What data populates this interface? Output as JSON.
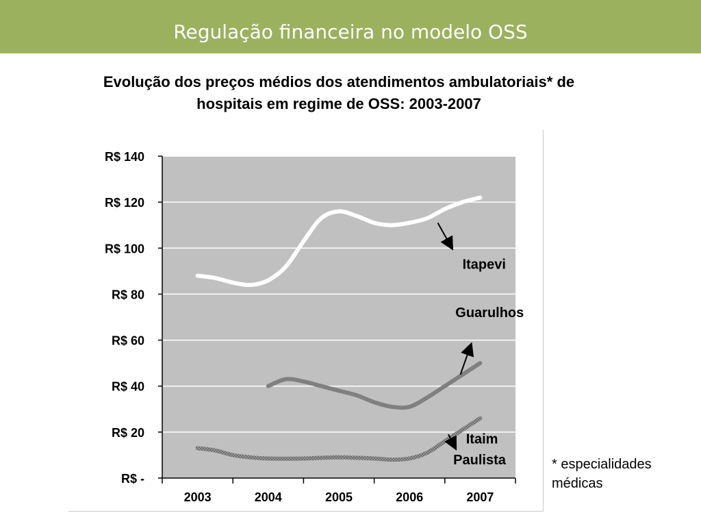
{
  "header": {
    "title": "Regulação financeira no modelo OSS",
    "bar_color": "#9bb15e"
  },
  "subtitle": {
    "line1": "Evolução dos preços médios dos atendimentos ambulatoriais* de",
    "line2": "hospitais em regime de OSS: 2003-2007"
  },
  "footnote": {
    "line1": "* especialidades",
    "line2": "médicas"
  },
  "chart_data": {
    "type": "line",
    "x_categories": [
      "2003",
      "2004",
      "2005",
      "2006",
      "2007"
    ],
    "y_ticks": [
      {
        "value": 0,
        "label": "R$ -"
      },
      {
        "value": 20,
        "label": "R$ 20"
      },
      {
        "value": 40,
        "label": "R$ 40"
      },
      {
        "value": 60,
        "label": "R$ 60"
      },
      {
        "value": 80,
        "label": "R$ 80"
      },
      {
        "value": 100,
        "label": "R$ 100"
      },
      {
        "value": 120,
        "label": "R$ 120"
      },
      {
        "value": 140,
        "label": "R$ 140"
      }
    ],
    "ylim": [
      0,
      140
    ],
    "grid": true,
    "plot_background": "#c0c0c0",
    "series": [
      {
        "name": "Itapevi",
        "color": "#ffffff",
        "style": "solid",
        "points": [
          {
            "x": 2003,
            "y": 88
          },
          {
            "x": 2003.25,
            "y": 87
          },
          {
            "x": 2003.5,
            "y": 85
          },
          {
            "x": 2003.75,
            "y": 84
          },
          {
            "x": 2004,
            "y": 86
          },
          {
            "x": 2004.25,
            "y": 92
          },
          {
            "x": 2004.5,
            "y": 103
          },
          {
            "x": 2004.75,
            "y": 113
          },
          {
            "x": 2005,
            "y": 116
          },
          {
            "x": 2005.25,
            "y": 114
          },
          {
            "x": 2005.5,
            "y": 111
          },
          {
            "x": 2005.75,
            "y": 110
          },
          {
            "x": 2006,
            "y": 111
          },
          {
            "x": 2006.25,
            "y": 113
          },
          {
            "x": 2006.5,
            "y": 117
          },
          {
            "x": 2006.75,
            "y": 120
          },
          {
            "x": 2007,
            "y": 122
          }
        ]
      },
      {
        "name": "Guarulhos",
        "color": "#808080",
        "style": "solid",
        "points": [
          {
            "x": 2004,
            "y": 40
          },
          {
            "x": 2004.25,
            "y": 43
          },
          {
            "x": 2004.5,
            "y": 42
          },
          {
            "x": 2004.75,
            "y": 40
          },
          {
            "x": 2005,
            "y": 38
          },
          {
            "x": 2005.25,
            "y": 36
          },
          {
            "x": 2005.5,
            "y": 33
          },
          {
            "x": 2005.75,
            "y": 31
          },
          {
            "x": 2006,
            "y": 31
          },
          {
            "x": 2006.25,
            "y": 35
          },
          {
            "x": 2006.5,
            "y": 40
          },
          {
            "x": 2006.75,
            "y": 45
          },
          {
            "x": 2007,
            "y": 50
          }
        ]
      },
      {
        "name": "Itaim Paulista",
        "color": "#8a8a8a",
        "style": "textured",
        "points": [
          {
            "x": 2003,
            "y": 13
          },
          {
            "x": 2003.25,
            "y": 12
          },
          {
            "x": 2003.5,
            "y": 10
          },
          {
            "x": 2003.75,
            "y": 9
          },
          {
            "x": 2004,
            "y": 8.5
          },
          {
            "x": 2004.5,
            "y": 8.5
          },
          {
            "x": 2005,
            "y": 9
          },
          {
            "x": 2005.5,
            "y": 8.5
          },
          {
            "x": 2005.75,
            "y": 8
          },
          {
            "x": 2006,
            "y": 8.5
          },
          {
            "x": 2006.25,
            "y": 11
          },
          {
            "x": 2006.5,
            "y": 16
          },
          {
            "x": 2006.75,
            "y": 21
          },
          {
            "x": 2007,
            "y": 26
          }
        ]
      }
    ],
    "annotations": [
      {
        "text": "Itapevi",
        "series": "Itapevi"
      },
      {
        "text": "Guarulhos",
        "series": "Guarulhos"
      },
      {
        "text": "Itaim",
        "series": "Itaim Paulista"
      },
      {
        "text": "Paulista",
        "series": "Itaim Paulista"
      }
    ]
  }
}
